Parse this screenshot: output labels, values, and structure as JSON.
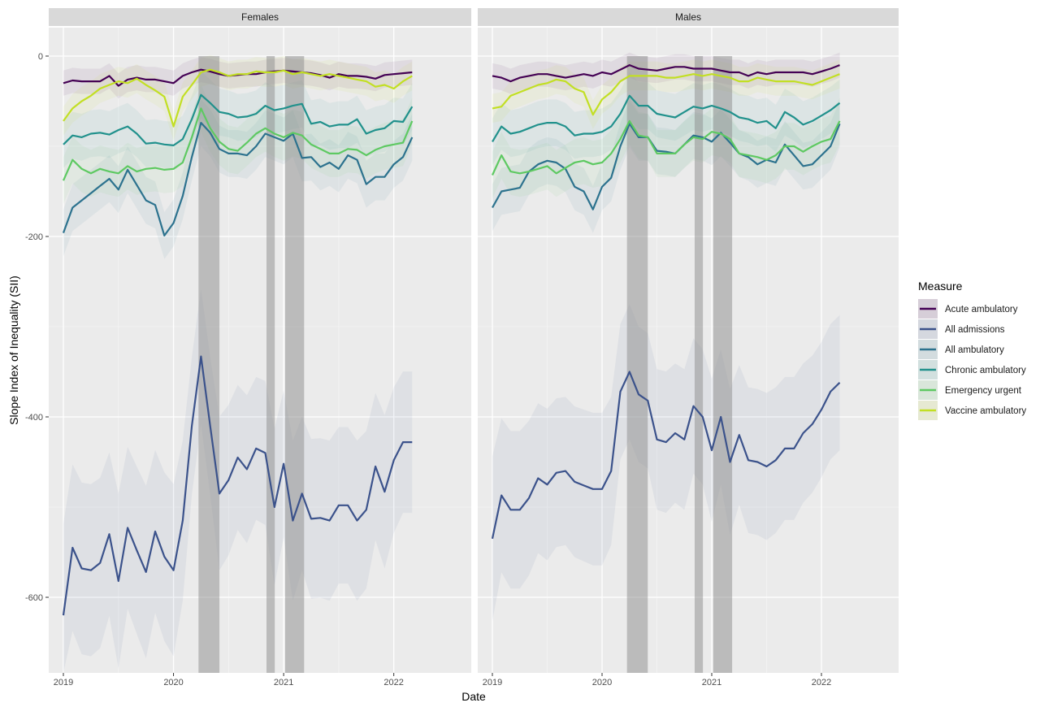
{
  "chart_data": {
    "type": "line",
    "xlabel": "Date",
    "ylabel": "Slope Index of Inequality (SII)",
    "x_ticks": [
      "2019",
      "2020",
      "2021",
      "2022"
    ],
    "y_ticks": [
      0,
      -200,
      -400,
      -600
    ],
    "ylim": [
      -680,
      10
    ],
    "xlim": [
      "2019-01",
      "2022-03"
    ],
    "grid": true,
    "legend": {
      "title": "Measure",
      "position": "right"
    },
    "lockdown_periods": [
      {
        "start": "2020-03-23",
        "end": "2020-06-01"
      },
      {
        "start": "2020-11-05",
        "end": "2020-12-02"
      },
      {
        "start": "2021-01-06",
        "end": "2021-03-08"
      }
    ],
    "months": [
      "2019-01",
      "2019-02",
      "2019-03",
      "2019-04",
      "2019-05",
      "2019-06",
      "2019-07",
      "2019-08",
      "2019-09",
      "2019-10",
      "2019-11",
      "2019-12",
      "2020-01",
      "2020-02",
      "2020-03",
      "2020-04",
      "2020-05",
      "2020-06",
      "2020-07",
      "2020-08",
      "2020-09",
      "2020-10",
      "2020-11",
      "2020-12",
      "2021-01",
      "2021-02",
      "2021-03",
      "2021-04",
      "2021-05",
      "2021-06",
      "2021-07",
      "2021-08",
      "2021-09",
      "2021-10",
      "2021-11",
      "2021-12",
      "2022-01",
      "2022-02",
      "2022-03"
    ],
    "panels": [
      {
        "strip": "Females",
        "series": [
          {
            "name": "Acute ambulatory",
            "color": "#440154",
            "values": [
              -30,
              -27,
              -28,
              -28,
              -28,
              -22,
              -33,
              -26,
              -24,
              -26,
              -26,
              -28,
              -30,
              -22,
              -18,
              -15,
              -17,
              -20,
              -22,
              -21,
              -20,
              -20,
              -18,
              -17,
              -16,
              -17,
              -18,
              -19,
              -21,
              -24,
              -20,
              -22,
              -22,
              -23,
              -25,
              -21,
              -20,
              -19,
              -18
            ]
          },
          {
            "name": "All admissions",
            "color": "#3B528B",
            "values": [
              -620,
              -545,
              -568,
              -570,
              -562,
              -530,
              -582,
              -523,
              -548,
              -572,
              -527,
              -555,
              -570,
              -515,
              -410,
              -333,
              -410,
              -485,
              -470,
              -445,
              -458,
              -435,
              -440,
              -500,
              -452,
              -515,
              -485,
              -513,
              -512,
              -515,
              -498,
              -498,
              -515,
              -503,
              -455,
              -483,
              -448,
              -428,
              -428
            ]
          },
          {
            "name": "All ambulatory",
            "color": "#2C728E",
            "values": [
              -196,
              -168,
              -160,
              -152,
              -144,
              -136,
              -148,
              -126,
              -143,
              -160,
              -165,
              -199,
              -185,
              -155,
              -112,
              -74,
              -85,
              -103,
              -108,
              -108,
              -110,
              -100,
              -86,
              -90,
              -94,
              -86,
              -113,
              -112,
              -123,
              -118,
              -125,
              -110,
              -115,
              -142,
              -134,
              -134,
              -120,
              -112,
              -90
            ]
          },
          {
            "name": "Chronic ambulatory",
            "color": "#21918C",
            "values": [
              -98,
              -88,
              -90,
              -86,
              -85,
              -87,
              -82,
              -78,
              -86,
              -97,
              -96,
              -98,
              -99,
              -92,
              -70,
              -43,
              -52,
              -62,
              -64,
              -68,
              -67,
              -64,
              -55,
              -60,
              -58,
              -55,
              -53,
              -75,
              -73,
              -78,
              -76,
              -76,
              -70,
              -86,
              -82,
              -80,
              -72,
              -73,
              -56
            ]
          },
          {
            "name": "Emergency urgent",
            "color": "#5EC962",
            "values": [
              -138,
              -115,
              -125,
              -130,
              -125,
              -128,
              -130,
              -122,
              -128,
              -125,
              -124,
              -126,
              -125,
              -118,
              -90,
              -58,
              -80,
              -95,
              -103,
              -105,
              -96,
              -86,
              -80,
              -86,
              -90,
              -85,
              -88,
              -98,
              -103,
              -108,
              -108,
              -103,
              -104,
              -110,
              -104,
              -100,
              -98,
              -96,
              -72
            ]
          },
          {
            "name": "Vaccine ambulatory",
            "color": "#C2DF23",
            "values": [
              -72,
              -58,
              -50,
              -44,
              -36,
              -32,
              -28,
              -30,
              -25,
              -32,
              -38,
              -45,
              -78,
              -45,
              -32,
              -18,
              -15,
              -18,
              -22,
              -20,
              -20,
              -17,
              -18,
              -18,
              -16,
              -20,
              -18,
              -20,
              -22,
              -20,
              -22,
              -24,
              -26,
              -28,
              -34,
              -32,
              -36,
              -28,
              -22
            ]
          }
        ]
      },
      {
        "strip": "Males",
        "series": [
          {
            "name": "Acute ambulatory",
            "color": "#440154",
            "values": [
              -22,
              -24,
              -28,
              -24,
              -22,
              -20,
              -20,
              -22,
              -24,
              -22,
              -20,
              -22,
              -18,
              -20,
              -15,
              -10,
              -14,
              -15,
              -16,
              -14,
              -12,
              -12,
              -14,
              -14,
              -14,
              -16,
              -18,
              -18,
              -22,
              -18,
              -20,
              -18,
              -18,
              -18,
              -18,
              -20,
              -17,
              -14,
              -10
            ]
          },
          {
            "name": "All admissions",
            "color": "#3B528B",
            "values": [
              -535,
              -487,
              -503,
              -503,
              -490,
              -468,
              -475,
              -462,
              -460,
              -472,
              -476,
              -480,
              -480,
              -460,
              -372,
              -350,
              -375,
              -382,
              -425,
              -428,
              -418,
              -425,
              -388,
              -400,
              -437,
              -400,
              -450,
              -420,
              -448,
              -450,
              -455,
              -448,
              -435,
              -435,
              -418,
              -408,
              -392,
              -372,
              -362
            ]
          },
          {
            "name": "All ambulatory",
            "color": "#2C728E",
            "values": [
              -168,
              -150,
              -148,
              -146,
              -128,
              -120,
              -116,
              -118,
              -125,
              -145,
              -150,
              -170,
              -145,
              -135,
              -100,
              -75,
              -90,
              -90,
              -105,
              -106,
              -108,
              -98,
              -88,
              -90,
              -95,
              -85,
              -96,
              -108,
              -112,
              -120,
              -115,
              -118,
              -98,
              -110,
              -122,
              -120,
              -110,
              -100,
              -75
            ]
          },
          {
            "name": "Chronic ambulatory",
            "color": "#21918C",
            "values": [
              -95,
              -78,
              -86,
              -84,
              -80,
              -76,
              -74,
              -74,
              -78,
              -88,
              -86,
              -86,
              -84,
              -78,
              -64,
              -44,
              -55,
              -55,
              -64,
              -66,
              -68,
              -62,
              -56,
              -58,
              -55,
              -58,
              -62,
              -68,
              -70,
              -74,
              -72,
              -80,
              -62,
              -68,
              -76,
              -72,
              -66,
              -60,
              -52
            ]
          },
          {
            "name": "Emergency urgent",
            "color": "#5EC962",
            "values": [
              -132,
              -110,
              -128,
              -130,
              -128,
              -125,
              -122,
              -130,
              -124,
              -118,
              -116,
              -120,
              -118,
              -108,
              -92,
              -72,
              -88,
              -90,
              -108,
              -108,
              -108,
              -98,
              -90,
              -92,
              -84,
              -86,
              -92,
              -108,
              -110,
              -112,
              -115,
              -110,
              -100,
              -100,
              -106,
              -100,
              -95,
              -92,
              -72
            ]
          },
          {
            "name": "Vaccine ambulatory",
            "color": "#C2DF23",
            "values": [
              -58,
              -56,
              -44,
              -40,
              -36,
              -32,
              -30,
              -26,
              -28,
              -36,
              -40,
              -65,
              -48,
              -40,
              -28,
              -22,
              -22,
              -22,
              -22,
              -24,
              -24,
              -22,
              -20,
              -22,
              -20,
              -22,
              -24,
              -28,
              -28,
              -24,
              -26,
              -28,
              -28,
              -28,
              -30,
              -32,
              -28,
              -24,
              -20
            ]
          }
        ]
      }
    ]
  }
}
